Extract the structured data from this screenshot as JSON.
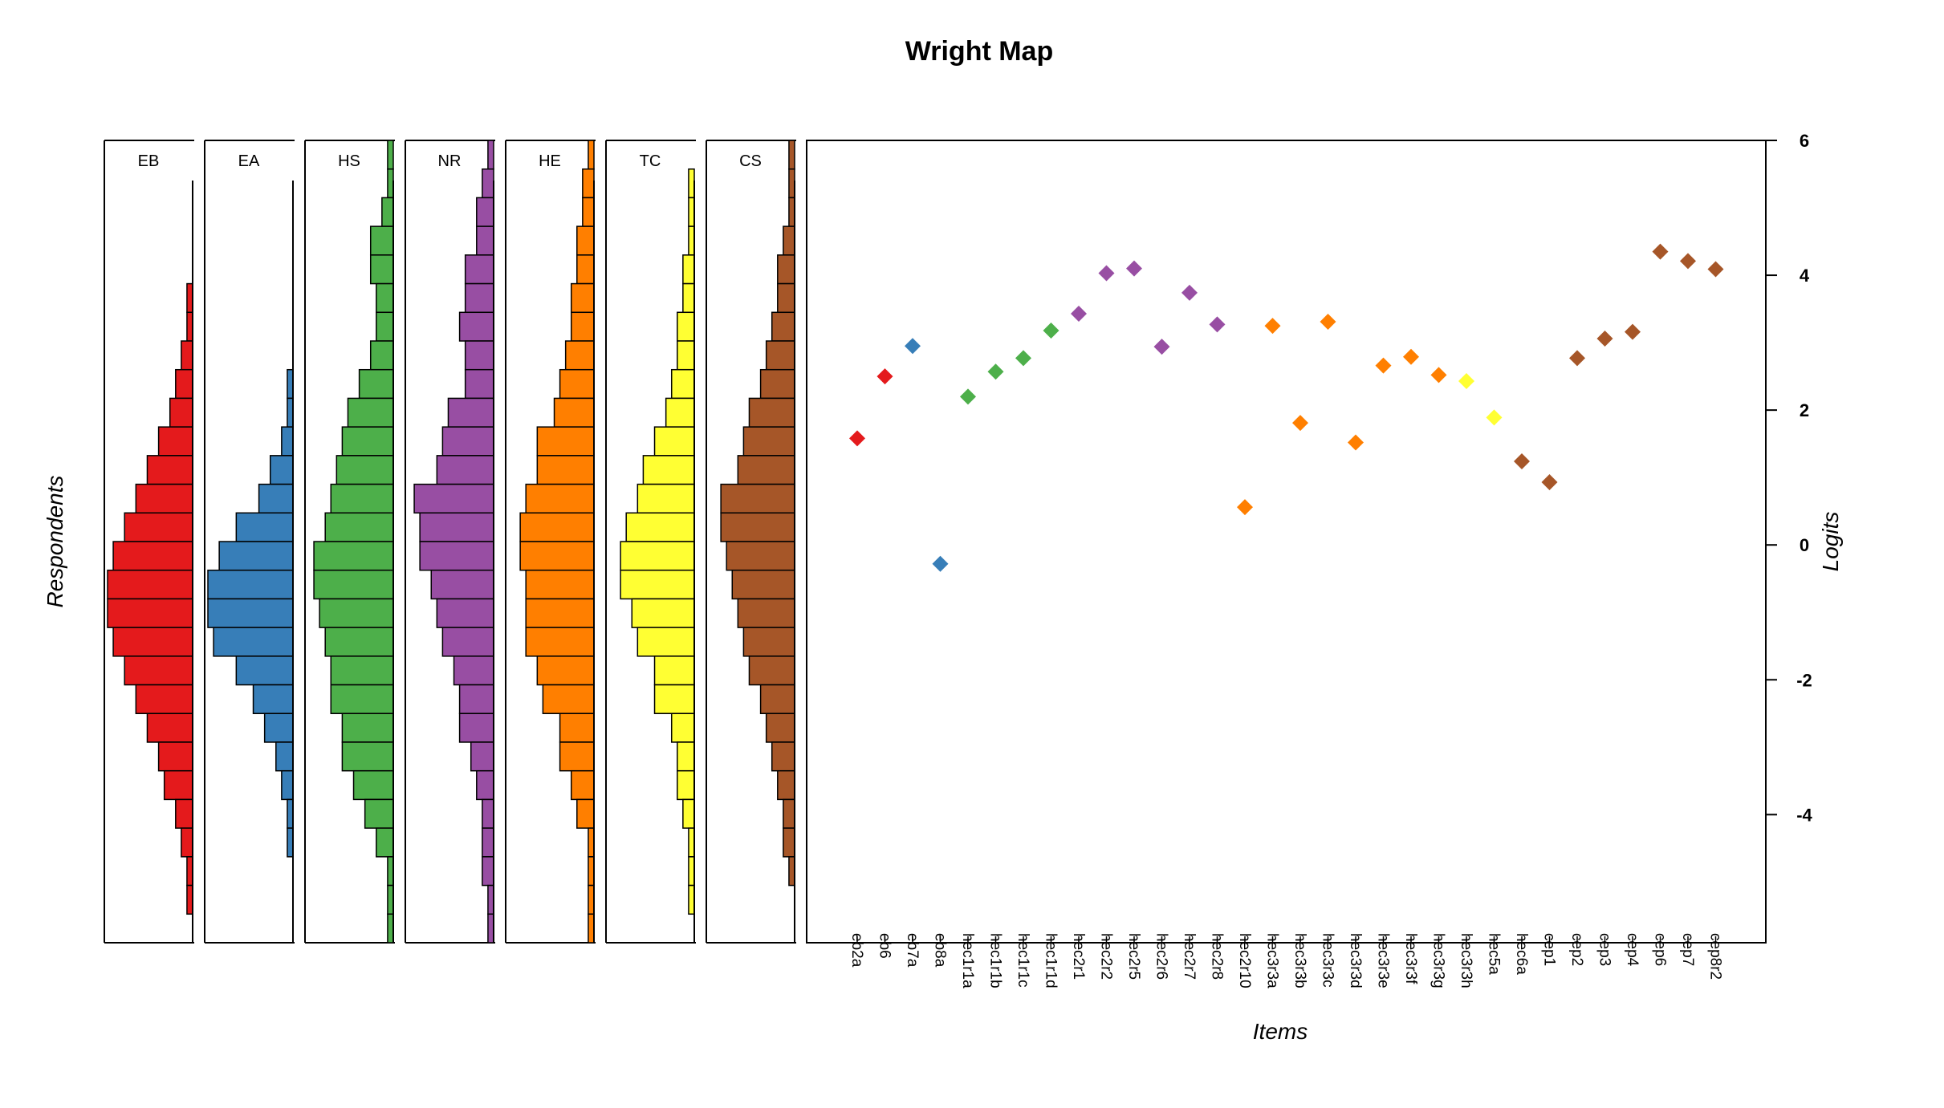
{
  "chart_data": {
    "type": "scatter",
    "title": "Wright Map",
    "xlabel": "Items",
    "ylabel": "Logits",
    "respondents_label": "Respondents",
    "ylim": [
      -5.9,
      6.0
    ],
    "yticks": [
      {
        "value": 6,
        "label": "6"
      },
      {
        "value": 4,
        "label": "4"
      },
      {
        "value": 2,
        "label": "2"
      },
      {
        "value": 0,
        "label": "0"
      },
      {
        "value": -2,
        "label": "-2"
      },
      {
        "value": -4,
        "label": "-4"
      }
    ],
    "bin_width": 0.5,
    "bin_start": -5.9,
    "dimensions": [
      {
        "name": "EB",
        "color": "#E41A1C",
        "counts": [
          0,
          0,
          0,
          0,
          0,
          0,
          0,
          0,
          0,
          0,
          0,
          0,
          0,
          0,
          0,
          0,
          0,
          0,
          0,
          0,
          0,
          0,
          0,
          0
        ]
      },
      {
        "name": "EA",
        "color": "#377EB8",
        "counts": []
      },
      {
        "name": "HS",
        "color": "#4DAF4A",
        "counts": []
      },
      {
        "name": "NR",
        "color": "#984EA3",
        "counts": []
      },
      {
        "name": "HE",
        "color": "#FF7F00",
        "counts": []
      },
      {
        "name": "TC",
        "color": "#FFFF33",
        "counts": []
      },
      {
        "name": "CS",
        "color": "#A65628",
        "counts": []
      }
    ],
    "histograms": [
      [
        0,
        0,
        0,
        0,
        0,
        1,
        1,
        2,
        3,
        4,
        6,
        8,
        10,
        12,
        14,
        15,
        15,
        14,
        12,
        10,
        8,
        6,
        5,
        3,
        2,
        1,
        1,
        0
      ],
      [
        0,
        0,
        0,
        0,
        0,
        0,
        0,
        0,
        1,
        1,
        2,
        4,
        6,
        10,
        13,
        15,
        15,
        14,
        10,
        7,
        5,
        3,
        2,
        1,
        1,
        0,
        0,
        0
      ],
      [
        1,
        1,
        2,
        4,
        4,
        3,
        3,
        4,
        6,
        8,
        9,
        10,
        11,
        12,
        14,
        14,
        13,
        12,
        11,
        11,
        9,
        9,
        7,
        5,
        3,
        1,
        1,
        1
      ],
      [
        1,
        2,
        3,
        3,
        5,
        5,
        6,
        5,
        5,
        8,
        9,
        10,
        14,
        13,
        13,
        11,
        10,
        9,
        7,
        6,
        6,
        4,
        3,
        2,
        2,
        2,
        1,
        1
      ],
      [
        1,
        2,
        2,
        3,
        3,
        4,
        4,
        5,
        6,
        7,
        10,
        10,
        12,
        13,
        13,
        12,
        12,
        12,
        10,
        9,
        6,
        6,
        4,
        3,
        1,
        1,
        1,
        1
      ],
      [
        0,
        1,
        1,
        1,
        2,
        2,
        3,
        3,
        4,
        5,
        7,
        9,
        10,
        12,
        13,
        13,
        11,
        10,
        7,
        7,
        4,
        3,
        3,
        2,
        1,
        1,
        1,
        0
      ],
      [
        1,
        1,
        1,
        2,
        3,
        3,
        4,
        5,
        6,
        8,
        9,
        10,
        13,
        13,
        12,
        11,
        10,
        9,
        8,
        6,
        5,
        4,
        3,
        2,
        2,
        1,
        0,
        0
      ]
    ],
    "histogram_max": 15,
    "series": [
      {
        "name": "EB",
        "color": "#E41A1C"
      },
      {
        "name": "EA",
        "color": "#377EB8"
      },
      {
        "name": "HS",
        "color": "#4DAF4A"
      },
      {
        "name": "NR",
        "color": "#984EA3"
      },
      {
        "name": "HE",
        "color": "#FF7F00"
      },
      {
        "name": "TC",
        "color": "#FFFF33"
      },
      {
        "name": "CS",
        "color": "#A65628"
      }
    ],
    "items": [
      {
        "label": "eb2a",
        "value": 1.58,
        "series": 0
      },
      {
        "label": "eb6",
        "value": 2.5,
        "series": 0
      },
      {
        "label": "eb7a",
        "value": 2.95,
        "series": 1
      },
      {
        "label": "eb8a",
        "value": -0.28,
        "series": 1
      },
      {
        "label": "hec1r1a",
        "value": 2.2,
        "series": 2
      },
      {
        "label": "hec1r1b",
        "value": 2.57,
        "series": 2
      },
      {
        "label": "hec1r1c",
        "value": 2.77,
        "series": 2
      },
      {
        "label": "hec1r1d",
        "value": 3.18,
        "series": 2
      },
      {
        "label": "hec2r1",
        "value": 3.43,
        "series": 3
      },
      {
        "label": "hec2r2",
        "value": 4.03,
        "series": 3
      },
      {
        "label": "hec2r5",
        "value": 4.1,
        "series": 3
      },
      {
        "label": "hec2r6",
        "value": 2.94,
        "series": 3
      },
      {
        "label": "hec2r7",
        "value": 3.74,
        "series": 3
      },
      {
        "label": "hec2r8",
        "value": 3.27,
        "series": 3
      },
      {
        "label": "hec2r10",
        "value": 0.56,
        "series": 4
      },
      {
        "label": "hec3r3a",
        "value": 3.25,
        "series": 4
      },
      {
        "label": "hec3r3b",
        "value": 1.81,
        "series": 4
      },
      {
        "label": "hec3r3c",
        "value": 3.31,
        "series": 4
      },
      {
        "label": "hec3r3d",
        "value": 1.52,
        "series": 4
      },
      {
        "label": "hec3r3e",
        "value": 2.66,
        "series": 4
      },
      {
        "label": "hec3r3f",
        "value": 2.79,
        "series": 4
      },
      {
        "label": "hec3r3g",
        "value": 2.52,
        "series": 4
      },
      {
        "label": "hec3r3h",
        "value": 2.43,
        "series": 5
      },
      {
        "label": "hec5a",
        "value": 1.89,
        "series": 5
      },
      {
        "label": "hec6a",
        "value": 1.24,
        "series": 6
      },
      {
        "label": "cep1",
        "value": 0.93,
        "series": 6
      },
      {
        "label": "cep2",
        "value": 2.77,
        "series": 6
      },
      {
        "label": "cep3",
        "value": 3.06,
        "series": 6
      },
      {
        "label": "cep4",
        "value": 3.16,
        "series": 6
      },
      {
        "label": "cep6",
        "value": 4.35,
        "series": 6
      },
      {
        "label": "cep7",
        "value": 4.21,
        "series": 6
      },
      {
        "label": "cep8r2",
        "value": 4.09,
        "series": 6
      }
    ]
  }
}
